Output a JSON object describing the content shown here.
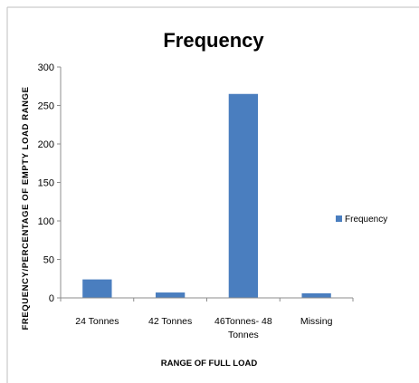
{
  "chart_data": {
    "type": "bar",
    "title": "Frequency",
    "xlabel": "RANGE OF FULL LOAD",
    "ylabel": "FREQUENCY/PERCENTAGE OF EMPTY LOAD RANGE",
    "categories": [
      "24 Tonnes",
      "42 Tonnes",
      "46Tonnes- 48 Tonnes",
      "Missing"
    ],
    "category_lines": [
      [
        "24 Tonnes"
      ],
      [
        "42 Tonnes"
      ],
      [
        "46Tonnes- 48",
        "Tonnes"
      ],
      [
        "Missing"
      ]
    ],
    "series": [
      {
        "name": "Frequency",
        "values": [
          24,
          7,
          265,
          6
        ]
      }
    ],
    "ylim": [
      0,
      300
    ],
    "yticks": [
      "0",
      "50",
      "100",
      "150",
      "200",
      "250",
      "300"
    ],
    "grid": false,
    "legend": "right",
    "colors": {
      "bar": "#4a7ebf",
      "axis": "#8c8c8c",
      "text": "#000000"
    }
  }
}
